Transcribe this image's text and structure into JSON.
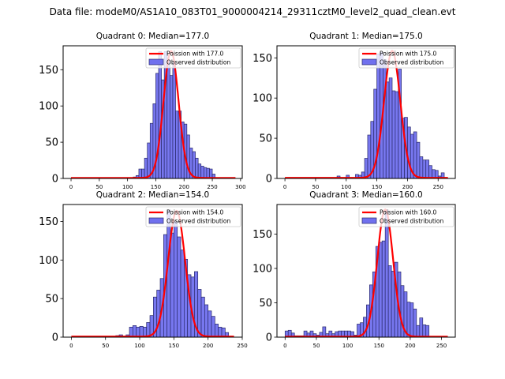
{
  "suptitle": "Data file: modeM0/AS1A10_083T01_9000004214_29311cztM0_level2_quad_clean.evt",
  "colors": {
    "bar_fill": "#7070ee",
    "bar_edge": "#2a2a6a",
    "poisson": "#ff0000",
    "axis": "#000000"
  },
  "chart_data": [
    {
      "type": "bar",
      "title": "Quadrant 0: Median=177.0",
      "legend": [
        "Poission with 177.0",
        "Observed distribution"
      ],
      "legend_position": "top-right",
      "bin_width": 5,
      "xlim": [
        -14,
        303
      ],
      "ylim": [
        0,
        183
      ],
      "xticks": [
        0,
        50,
        100,
        150,
        200,
        250,
        300
      ],
      "yticks": [
        0,
        50,
        100,
        150
      ],
      "poisson_mean": 177.0,
      "poisson_peak": 175,
      "bins_start": [
        95,
        100,
        105,
        110,
        115,
        120,
        125,
        130,
        135,
        140,
        145,
        150,
        155,
        160,
        165,
        170,
        175,
        180,
        185,
        190,
        195,
        200,
        205,
        210,
        215,
        220,
        225,
        230,
        235,
        240,
        245,
        250,
        255,
        260,
        265,
        270,
        275,
        280,
        285
      ],
      "values": [
        1,
        0,
        1,
        2,
        4,
        13,
        13,
        28,
        49,
        76,
        103,
        145,
        175,
        136,
        175,
        163,
        142,
        160,
        93,
        93,
        78,
        75,
        60,
        42,
        37,
        28,
        20,
        17,
        15,
        14,
        13,
        6,
        1,
        0,
        0,
        1,
        0,
        0,
        0
      ]
    },
    {
      "type": "bar",
      "title": "Quadrant 1: Median=175.0",
      "legend": [
        "Poission with 175.0",
        "Observed distribution"
      ],
      "legend_position": "top-right",
      "bin_width": 5,
      "xlim": [
        -13,
        278
      ],
      "ylim": [
        0,
        165
      ],
      "xticks": [
        0,
        50,
        100,
        150,
        200,
        250
      ],
      "yticks": [
        0,
        50,
        100,
        150
      ],
      "poisson_mean": 175.0,
      "poisson_peak": 158,
      "bins_start": [
        85,
        90,
        95,
        100,
        105,
        110,
        115,
        120,
        125,
        130,
        135,
        140,
        145,
        150,
        155,
        160,
        165,
        170,
        175,
        180,
        185,
        190,
        195,
        200,
        205,
        210,
        215,
        220,
        225,
        230,
        235,
        240,
        245,
        250,
        255,
        260
      ],
      "values": [
        3,
        0,
        0,
        4,
        0,
        0,
        5,
        4,
        8,
        25,
        54,
        71,
        111,
        155,
        157,
        148,
        120,
        125,
        109,
        108,
        136,
        75,
        76,
        64,
        55,
        58,
        45,
        27,
        23,
        23,
        16,
        11,
        10,
        3,
        7,
        0
      ]
    },
    {
      "type": "bar",
      "title": "Quadrant 2: Median=154.0",
      "legend": [
        "Poission with 154.0",
        "Observed distribution"
      ],
      "legend_position": "top-right",
      "bin_width": 5,
      "xlim": [
        -12,
        250
      ],
      "ylim": [
        0,
        172
      ],
      "xticks": [
        0,
        50,
        100,
        150,
        200,
        250
      ],
      "yticks": [
        0,
        50,
        100,
        150
      ],
      "poisson_mean": 154.0,
      "poisson_peak": 163,
      "bins_start": [
        50,
        55,
        60,
        65,
        70,
        75,
        80,
        85,
        90,
        95,
        100,
        105,
        110,
        115,
        120,
        125,
        130,
        135,
        140,
        145,
        150,
        155,
        160,
        165,
        170,
        175,
        180,
        185,
        190,
        195,
        200,
        205,
        210,
        215,
        220,
        225
      ],
      "values": [
        1,
        0,
        0,
        2,
        3,
        0,
        3,
        13,
        15,
        13,
        14,
        13,
        19,
        28,
        52,
        61,
        76,
        133,
        165,
        135,
        150,
        130,
        113,
        101,
        81,
        78,
        85,
        62,
        52,
        42,
        34,
        27,
        17,
        13,
        12,
        6
      ]
    },
    {
      "type": "bar",
      "title": "Quadrant 3: Median=160.0",
      "legend": [
        "Poission with 160.0",
        "Observed distribution"
      ],
      "legend_position": "top-right",
      "bin_width": 5,
      "xlim": [
        -13,
        272
      ],
      "ylim": [
        0,
        193
      ],
      "xticks": [
        0,
        50,
        100,
        150,
        200,
        250
      ],
      "yticks": [
        0,
        50,
        100,
        150
      ],
      "poisson_mean": 160.0,
      "poisson_peak": 185,
      "bins_start": [
        0,
        5,
        10,
        15,
        20,
        25,
        30,
        35,
        40,
        45,
        50,
        55,
        60,
        65,
        70,
        75,
        80,
        85,
        90,
        95,
        100,
        105,
        110,
        115,
        120,
        125,
        130,
        135,
        140,
        145,
        150,
        155,
        160,
        165,
        170,
        175,
        180,
        185,
        190,
        195,
        200,
        205,
        210,
        215,
        220,
        225
      ],
      "values": [
        9,
        10,
        6,
        2,
        2,
        2,
        9,
        6,
        9,
        5,
        3,
        7,
        15,
        5,
        9,
        5,
        8,
        9,
        9,
        9,
        9,
        8,
        3,
        19,
        21,
        29,
        47,
        76,
        95,
        132,
        138,
        140,
        185,
        104,
        96,
        109,
        95,
        75,
        66,
        51,
        50,
        41,
        17,
        28,
        18,
        17
      ]
    }
  ]
}
